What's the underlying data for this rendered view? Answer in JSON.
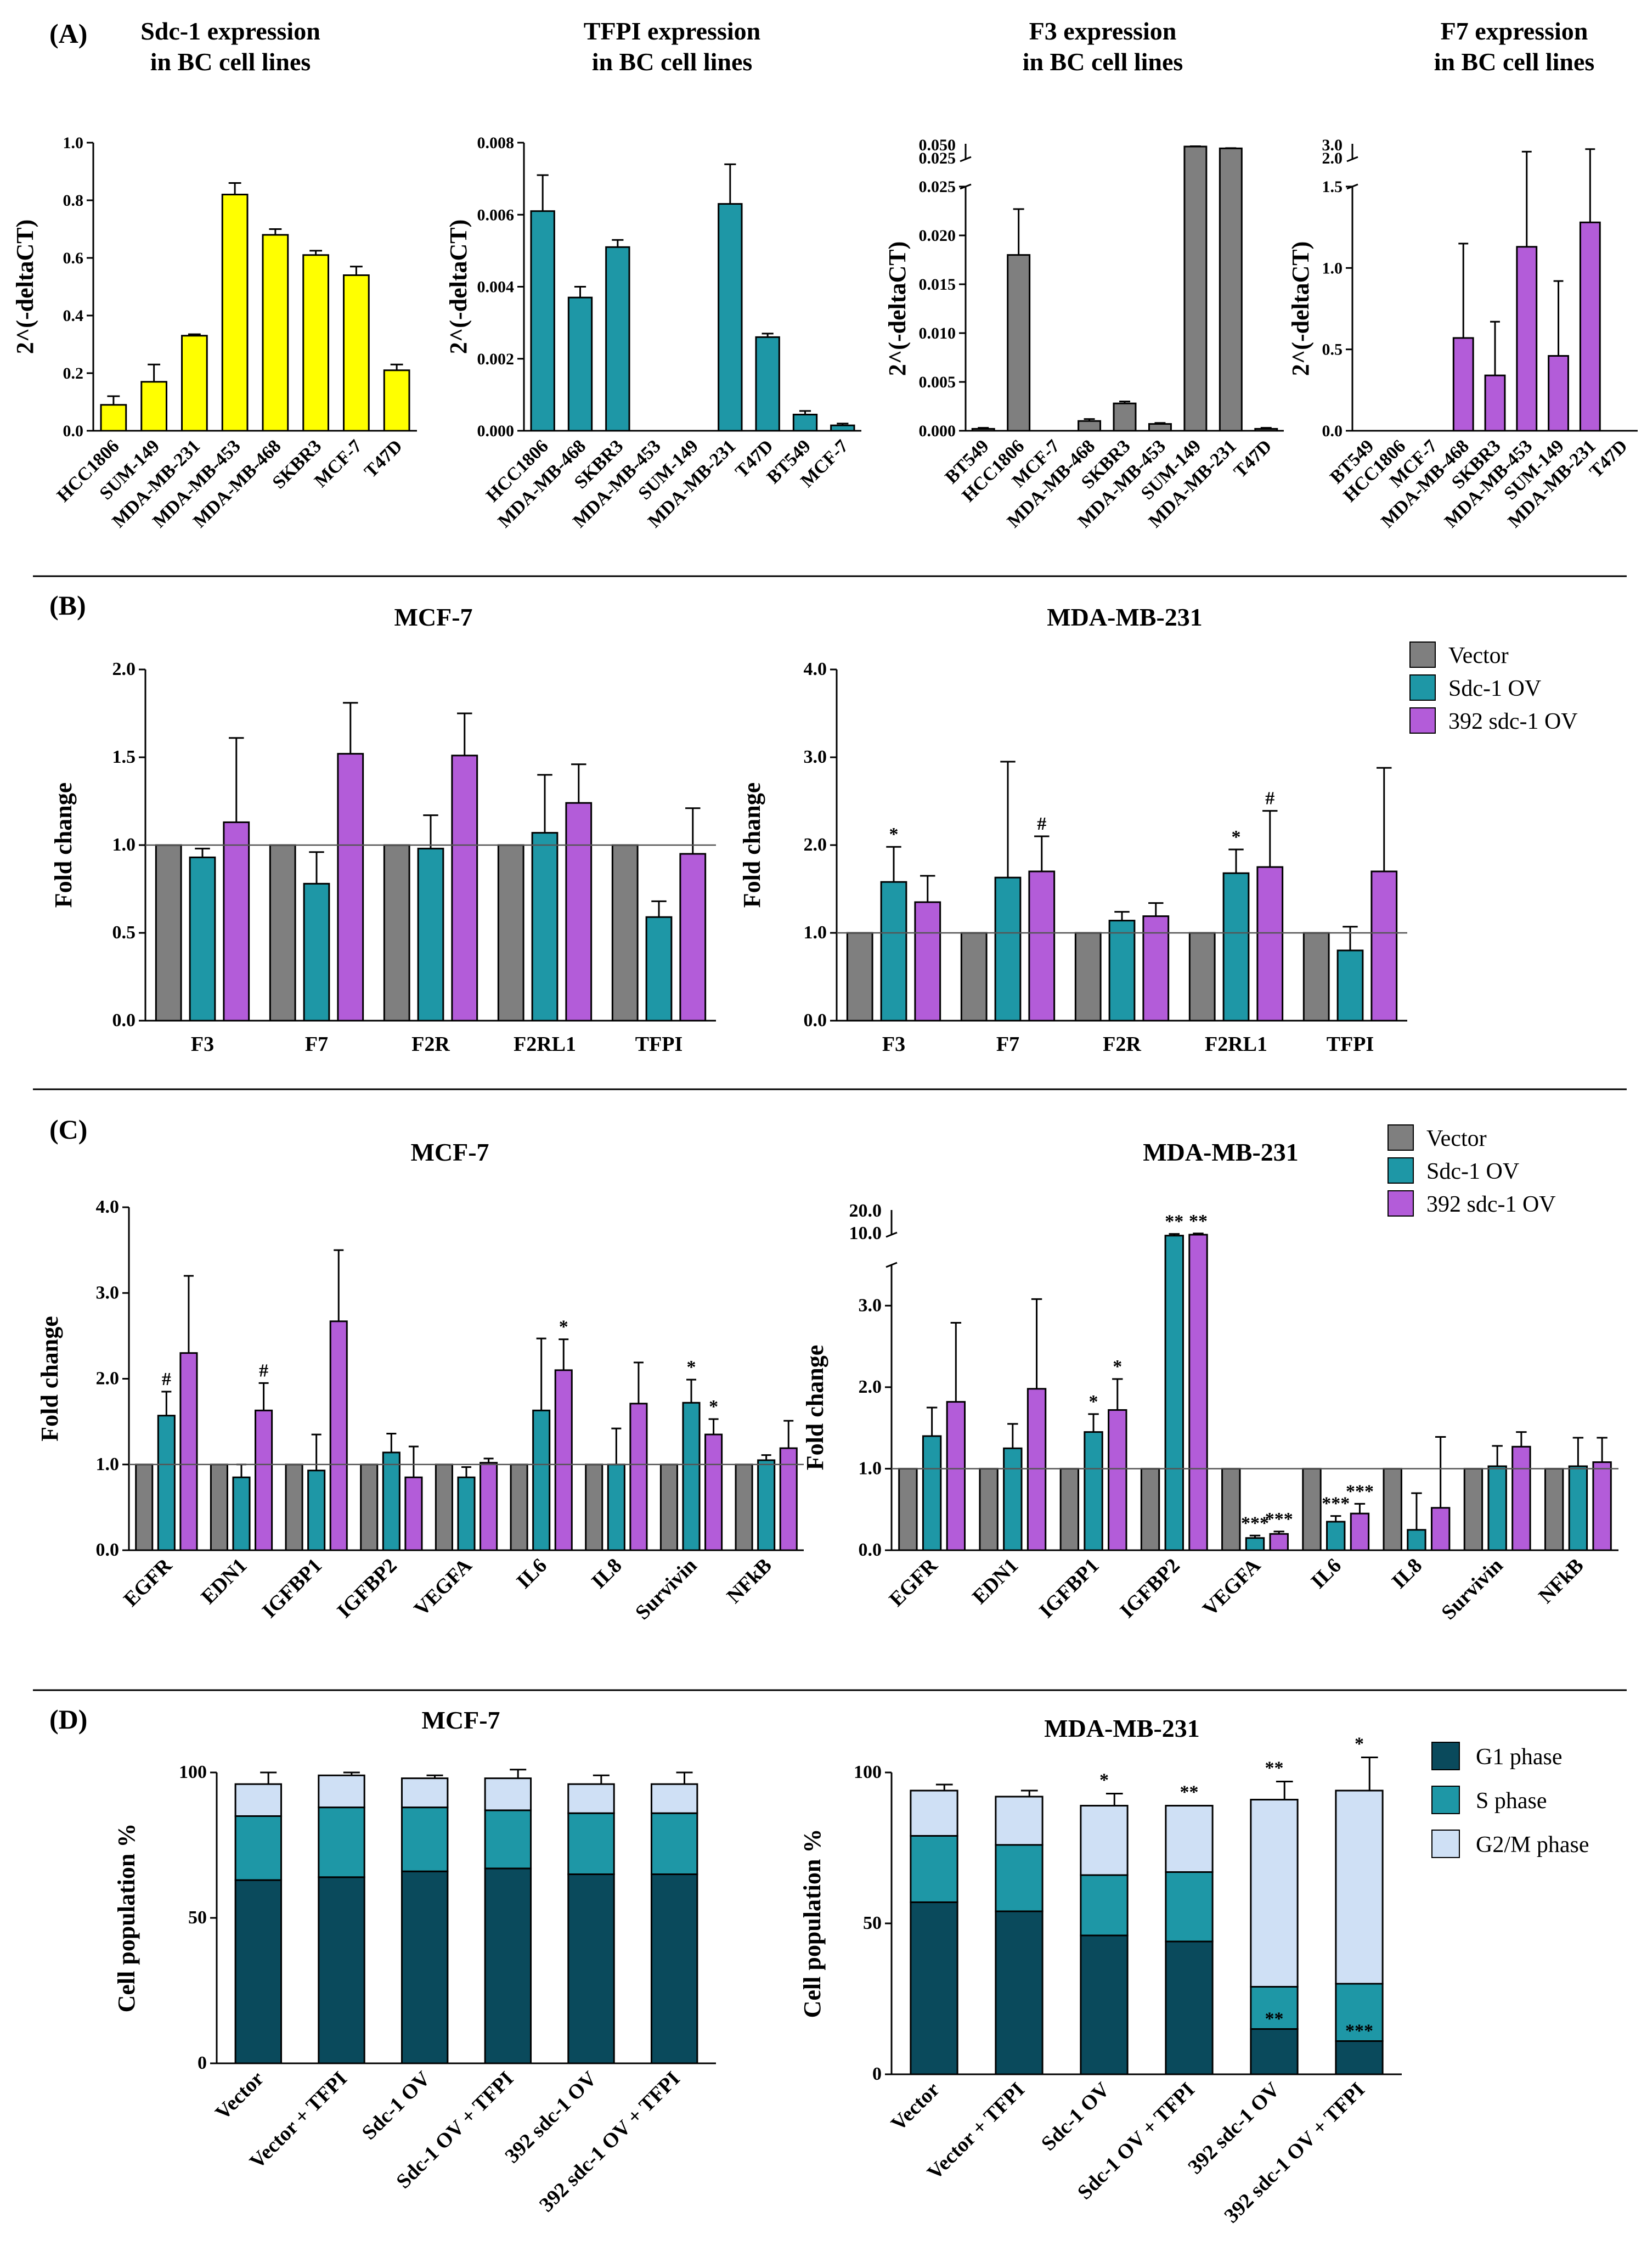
{
  "figure": {
    "panel_labels": [
      "(A)",
      "(B)",
      "(C)",
      "(D)"
    ],
    "colors": {
      "yellow": "#ffff00",
      "teal": "#1e97a6",
      "purple": "#b35cd9",
      "gray": "#7f7f7f",
      "g1": "#0a4a5c",
      "s": "#1e97a6",
      "g2m": "#cfe0f5"
    }
  },
  "chart_data": [
    {
      "id": "A1",
      "panel": "(A)",
      "type": "bar",
      "title": "Sdc-1 expression\nin BC cell lines",
      "ylabel": "2^(-deltaCT)",
      "categories": [
        "HCC1806",
        "SUM-149",
        "MDA-MB-231",
        "MDA-MB-453",
        "MDA-MB-468",
        "SKBR3",
        "MCF-7",
        "T47D"
      ],
      "values": [
        0.09,
        0.17,
        0.33,
        0.82,
        0.68,
        0.61,
        0.54,
        0.21
      ],
      "errors": [
        0.03,
        0.06,
        0.005,
        0.04,
        0.02,
        0.015,
        0.03,
        0.02
      ],
      "ylim": [
        0,
        1.0
      ],
      "yticks": [
        0,
        0.2,
        0.4,
        0.6,
        0.8,
        1.0
      ],
      "ytick_labels": [
        "0.0",
        "0.2",
        "0.4",
        "0.6",
        "0.8",
        "1.0"
      ],
      "color": "#ffff00"
    },
    {
      "id": "A2",
      "panel": "(A)",
      "type": "bar",
      "title": "TFPI expression\nin BC cell lines",
      "ylabel": "2^(-deltaCT)",
      "categories": [
        "HCC1806",
        "MDA-MB-468",
        "SKBR3",
        "MDA-MB-453",
        "SUM-149",
        "MDA-MB-231",
        "T47D",
        "BT549",
        "MCF-7"
      ],
      "values": [
        0.0061,
        0.0037,
        0.0051,
        0,
        0,
        0.0063,
        0.0026,
        0.00045,
        0.00015
      ],
      "errors": [
        0.001,
        0.0003,
        0.0002,
        0,
        0,
        0.0011,
        0.0001,
        0.0001,
        5e-05
      ],
      "ylim": [
        0,
        0.008
      ],
      "yticks": [
        0,
        0.002,
        0.004,
        0.006,
        0.008
      ],
      "ytick_labels": [
        "0.000",
        "0.002",
        "0.004",
        "0.006",
        "0.008"
      ],
      "color": "#1e97a6"
    },
    {
      "id": "A3",
      "panel": "(A)",
      "type": "bar",
      "title": "F3 expression\nin BC cell lines",
      "ylabel": "2^(-deltaCT)",
      "categories": [
        "BT549",
        "HCC1806",
        "MCF-7",
        "MDA-MB-468",
        "SKBR3",
        "MDA-MB-453",
        "SUM-149",
        "MDA-MB-231",
        "T47D"
      ],
      "values": [
        0.0002,
        0.018,
        0,
        0.001,
        0.0028,
        0.0007,
        0.0455,
        0.0425,
        0.0002
      ],
      "errors": [
        0.0001,
        0.0047,
        0,
        0.0002,
        0.0002,
        0.0001,
        0.0005,
        0.0005,
        0.0001
      ],
      "ylim": [
        0,
        0.05
      ],
      "axis_break": {
        "lower_max": 0.025,
        "upper": [
          0.025,
          0.05
        ]
      },
      "yticks": [
        0,
        0.005,
        0.01,
        0.015,
        0.02,
        0.025
      ],
      "ytick_labels": [
        "0.000",
        "0.005",
        "0.010",
        "0.015",
        "0.020",
        "0.025"
      ],
      "upper_tick_labels": [
        "0.025",
        "0.050"
      ],
      "color": "#7f7f7f"
    },
    {
      "id": "A4",
      "panel": "(A)",
      "type": "bar",
      "title": "F7 expression\nin BC cell lines",
      "ylabel": "2^(-deltaCT)",
      "categories": [
        "BT549",
        "HCC1806",
        "MCF-7",
        "MDA-MB-468",
        "SKBR3",
        "MDA-MB-453",
        "SUM-149",
        "MDA-MB-231",
        "T47D"
      ],
      "values": [
        0,
        0,
        0,
        0.57,
        0.34,
        1.13,
        0.46,
        1.28,
        0
      ],
      "errors": [
        0,
        0,
        0,
        0.58,
        0.33,
        1.1,
        0.46,
        1.2,
        0
      ],
      "ylim": [
        0,
        3.0
      ],
      "axis_break": {
        "lower_max": 1.5,
        "upper": [
          1.5,
          3.0
        ]
      },
      "yticks": [
        0,
        0.5,
        1.0,
        1.5
      ],
      "ytick_labels": [
        "0.0",
        "0.5",
        "1.0",
        "1.5"
      ],
      "upper_tick_labels": [
        "2.0",
        "3.0"
      ],
      "color": "#b35cd9"
    },
    {
      "id": "B1",
      "panel": "(B)",
      "type": "bar",
      "title": "MCF-7",
      "ylabel": "Fold change",
      "categories": [
        "F3",
        "F7",
        "F2R",
        "F2RL1",
        "TFPI"
      ],
      "series": [
        {
          "name": "Vector",
          "values": [
            1,
            1,
            1,
            1,
            1
          ],
          "errors": [
            0,
            0,
            0,
            0,
            0
          ]
        },
        {
          "name": "Sdc-1 OV",
          "values": [
            0.93,
            0.78,
            0.98,
            1.07,
            0.59
          ],
          "errors": [
            0.05,
            0.18,
            0.19,
            0.33,
            0.09
          ]
        },
        {
          "name": "392 sdc-1 OV",
          "values": [
            1.13,
            1.52,
            1.51,
            1.24,
            0.95
          ],
          "errors": [
            0.48,
            0.29,
            0.24,
            0.22,
            0.26
          ]
        }
      ],
      "annotations": [],
      "ylim": [
        0,
        2.0
      ],
      "yticks": [
        0,
        0.5,
        1.0,
        1.5,
        2.0
      ],
      "ytick_labels": [
        "0.0",
        "0.5",
        "1.0",
        "1.5",
        "2.0"
      ],
      "reference_line": 1.0
    },
    {
      "id": "B2",
      "panel": "(B)",
      "type": "bar",
      "title": "MDA-MB-231",
      "ylabel": "Fold change",
      "categories": [
        "F3",
        "F7",
        "F2R",
        "F2RL1",
        "TFPI"
      ],
      "series": [
        {
          "name": "Vector",
          "values": [
            1,
            1,
            1,
            1,
            1
          ],
          "errors": [
            0,
            0,
            0,
            0,
            0
          ]
        },
        {
          "name": "Sdc-1 OV",
          "values": [
            1.58,
            1.63,
            1.14,
            1.68,
            0.8
          ],
          "errors": [
            0.4,
            1.32,
            0.1,
            0.27,
            0.27
          ]
        },
        {
          "name": "392 sdc-1 OV",
          "values": [
            1.35,
            1.7,
            1.19,
            1.75,
            1.7
          ],
          "errors": [
            0.3,
            0.4,
            0.15,
            0.64,
            1.18
          ]
        }
      ],
      "annotations": [
        {
          "cat": 0,
          "series": 1,
          "text": "*"
        },
        {
          "cat": 1,
          "series": 2,
          "text": "#"
        },
        {
          "cat": 3,
          "series": 1,
          "text": "*"
        },
        {
          "cat": 3,
          "series": 2,
          "text": "#"
        }
      ],
      "ylim": [
        0,
        4.0
      ],
      "yticks": [
        0,
        1.0,
        2.0,
        3.0,
        4.0
      ],
      "ytick_labels": [
        "0.0",
        "1.0",
        "2.0",
        "3.0",
        "4.0"
      ],
      "reference_line": 1.0
    },
    {
      "id": "C1",
      "panel": "(C)",
      "type": "bar",
      "title": "MCF-7",
      "ylabel": "Fold change",
      "categories": [
        "EGFR",
        "EDN1",
        "IGFBP1",
        "IGFBP2",
        "VEGFA",
        "IL6",
        "IL8",
        "Survivin",
        "NFkB"
      ],
      "series": [
        {
          "name": "Vector",
          "values": [
            1,
            1,
            1,
            1,
            1,
            1,
            1,
            1,
            1
          ],
          "errors": [
            0,
            0,
            0,
            0,
            0,
            0,
            0,
            0,
            0
          ]
        },
        {
          "name": "Sdc-1 OV",
          "values": [
            1.57,
            0.85,
            0.93,
            1.14,
            0.85,
            1.63,
            1.0,
            1.72,
            1.05
          ],
          "errors": [
            0.28,
            0.15,
            0.42,
            0.22,
            0.12,
            0.84,
            0.42,
            0.27,
            0.06
          ]
        },
        {
          "name": "392 sdc-1 OV",
          "values": [
            2.3,
            1.63,
            2.67,
            0.85,
            1.02,
            2.1,
            1.71,
            1.35,
            1.19
          ],
          "errors": [
            0.9,
            0.32,
            0.83,
            0.36,
            0.05,
            0.36,
            0.48,
            0.18,
            0.32
          ]
        }
      ],
      "annotations": [
        {
          "cat": 0,
          "series": 1,
          "text": "#"
        },
        {
          "cat": 1,
          "series": 2,
          "text": "#"
        },
        {
          "cat": 5,
          "series": 2,
          "text": "*"
        },
        {
          "cat": 7,
          "series": 1,
          "text": "*"
        },
        {
          "cat": 7,
          "series": 2,
          "text": "*"
        }
      ],
      "ylim": [
        0,
        4.0
      ],
      "yticks": [
        0,
        1.0,
        2.0,
        3.0,
        4.0
      ],
      "ytick_labels": [
        "0.0",
        "1.0",
        "2.0",
        "3.0",
        "4.0"
      ],
      "reference_line": 1.0
    },
    {
      "id": "C2",
      "panel": "(C)",
      "type": "bar",
      "title": "MDA-MB-231",
      "ylabel": "Fold change",
      "categories": [
        "EGFR",
        "EDN1",
        "IGFBP1",
        "IGFBP2",
        "VEGFA",
        "IL6",
        "IL8",
        "Survivin",
        "NFkB"
      ],
      "series": [
        {
          "name": "Vector",
          "values": [
            1,
            1,
            1,
            1,
            1,
            1,
            1,
            1,
            1
          ],
          "errors": [
            0,
            0,
            0,
            0,
            0,
            0,
            0,
            0,
            0
          ]
        },
        {
          "name": "Sdc-1 OV",
          "values": [
            1.4,
            1.25,
            1.45,
            9.8,
            0.15,
            0.35,
            0.25,
            1.03,
            1.03
          ],
          "errors": [
            0.35,
            0.3,
            0.22,
            0.5,
            0.03,
            0.07,
            0.45,
            0.25,
            0.35
          ]
        },
        {
          "name": "392 sdc-1 OV",
          "values": [
            1.82,
            1.98,
            1.72,
            10.0,
            0.2,
            0.45,
            0.52,
            1.27,
            1.08
          ],
          "errors": [
            0.97,
            1.1,
            0.38,
            0.5,
            0.03,
            0.12,
            0.87,
            0.18,
            0.3
          ]
        }
      ],
      "annotations": [
        {
          "cat": 2,
          "series": 1,
          "text": "*"
        },
        {
          "cat": 2,
          "series": 2,
          "text": "*"
        },
        {
          "cat": 3,
          "series": 1,
          "text": "**"
        },
        {
          "cat": 3,
          "series": 2,
          "text": "**"
        },
        {
          "cat": 4,
          "series": 1,
          "text": "***"
        },
        {
          "cat": 4,
          "series": 2,
          "text": "***"
        },
        {
          "cat": 5,
          "series": 1,
          "text": "***"
        },
        {
          "cat": 5,
          "series": 2,
          "text": "***"
        }
      ],
      "ylim": [
        0,
        20.0
      ],
      "axis_break": {
        "lower_max": 3.5,
        "upper": [
          10.0,
          20.0
        ]
      },
      "yticks": [
        0,
        1.0,
        2.0,
        3.0
      ],
      "ytick_labels": [
        "0.0",
        "1.0",
        "2.0",
        "3.0"
      ],
      "upper_tick_labels": [
        "10.0",
        "20.0"
      ],
      "reference_line": 1.0
    },
    {
      "id": "D1",
      "panel": "(D)",
      "type": "bar",
      "stacked": true,
      "title": "MCF-7",
      "ylabel": "Cell population %",
      "categories": [
        "Vector",
        "Vector + TFPI",
        "Sdc-1 OV",
        "Sdc-1 OV + TFPI",
        "392 sdc-1 OV",
        "392 sdc-1 OV + TFPI"
      ],
      "series": [
        {
          "name": "G1 phase",
          "values": [
            63,
            64,
            66,
            67,
            65,
            65
          ],
          "errors": [
            8,
            8,
            9,
            9,
            10,
            8
          ]
        },
        {
          "name": "S phase",
          "values": [
            22,
            24,
            22,
            20,
            21,
            21
          ],
          "errors": [
            5,
            5,
            4,
            4,
            5,
            5
          ]
        },
        {
          "name": "G2/M phase",
          "values": [
            11,
            11,
            10,
            11,
            10,
            10
          ],
          "errors": [
            4,
            1,
            1,
            3,
            3,
            4
          ]
        }
      ],
      "annotations": [],
      "ylim": [
        0,
        100
      ],
      "yticks": [
        0,
        50,
        100
      ],
      "ytick_labels": [
        "0",
        "50",
        "100"
      ]
    },
    {
      "id": "D2",
      "panel": "(D)",
      "type": "bar",
      "stacked": true,
      "title": "MDA-MB-231",
      "ylabel": "Cell population %",
      "categories": [
        "Vector",
        "Vector + TFPI",
        "Sdc-1 OV",
        "Sdc-1 OV + TFPI",
        "392 sdc-1 OV",
        "392 sdc-1 OV + TFPI"
      ],
      "series": [
        {
          "name": "G1 phase",
          "values": [
            57,
            54,
            46,
            44,
            15,
            11
          ],
          "errors": [
            11,
            4,
            3,
            2,
            3,
            5
          ]
        },
        {
          "name": "S phase",
          "values": [
            22,
            22,
            20,
            23,
            14,
            19
          ],
          "errors": [
            7,
            2,
            6,
            5,
            6,
            12
          ]
        },
        {
          "name": "G2/M phase",
          "values": [
            15,
            16,
            23,
            22,
            62,
            64
          ],
          "errors": [
            2,
            2,
            4,
            0,
            6,
            11
          ]
        }
      ],
      "annotations": [
        {
          "cat": 2,
          "series": 2,
          "text": "*"
        },
        {
          "cat": 3,
          "series": 2,
          "text": "**"
        },
        {
          "cat": 4,
          "series": 2,
          "text": "**"
        },
        {
          "cat": 5,
          "series": 2,
          "text": "*"
        },
        {
          "cat": 4,
          "series": 1,
          "text": "**"
        },
        {
          "cat": 5,
          "series": 1,
          "text": "***"
        }
      ],
      "ylim": [
        0,
        100
      ],
      "yticks": [
        0,
        50,
        100
      ],
      "ytick_labels": [
        "0",
        "50",
        "100"
      ]
    }
  ],
  "legends": {
    "groups": [
      {
        "name": "Vector",
        "color": "#7f7f7f"
      },
      {
        "name": "Sdc-1 OV",
        "color": "#1e97a6"
      },
      {
        "name": "392 sdc-1 OV",
        "color": "#b35cd9"
      }
    ],
    "phases": [
      {
        "name": "G1 phase",
        "color": "#0a4a5c"
      },
      {
        "name": "S phase",
        "color": "#1e97a6"
      },
      {
        "name": "G2/M phase",
        "color": "#cfe0f5"
      }
    ]
  }
}
